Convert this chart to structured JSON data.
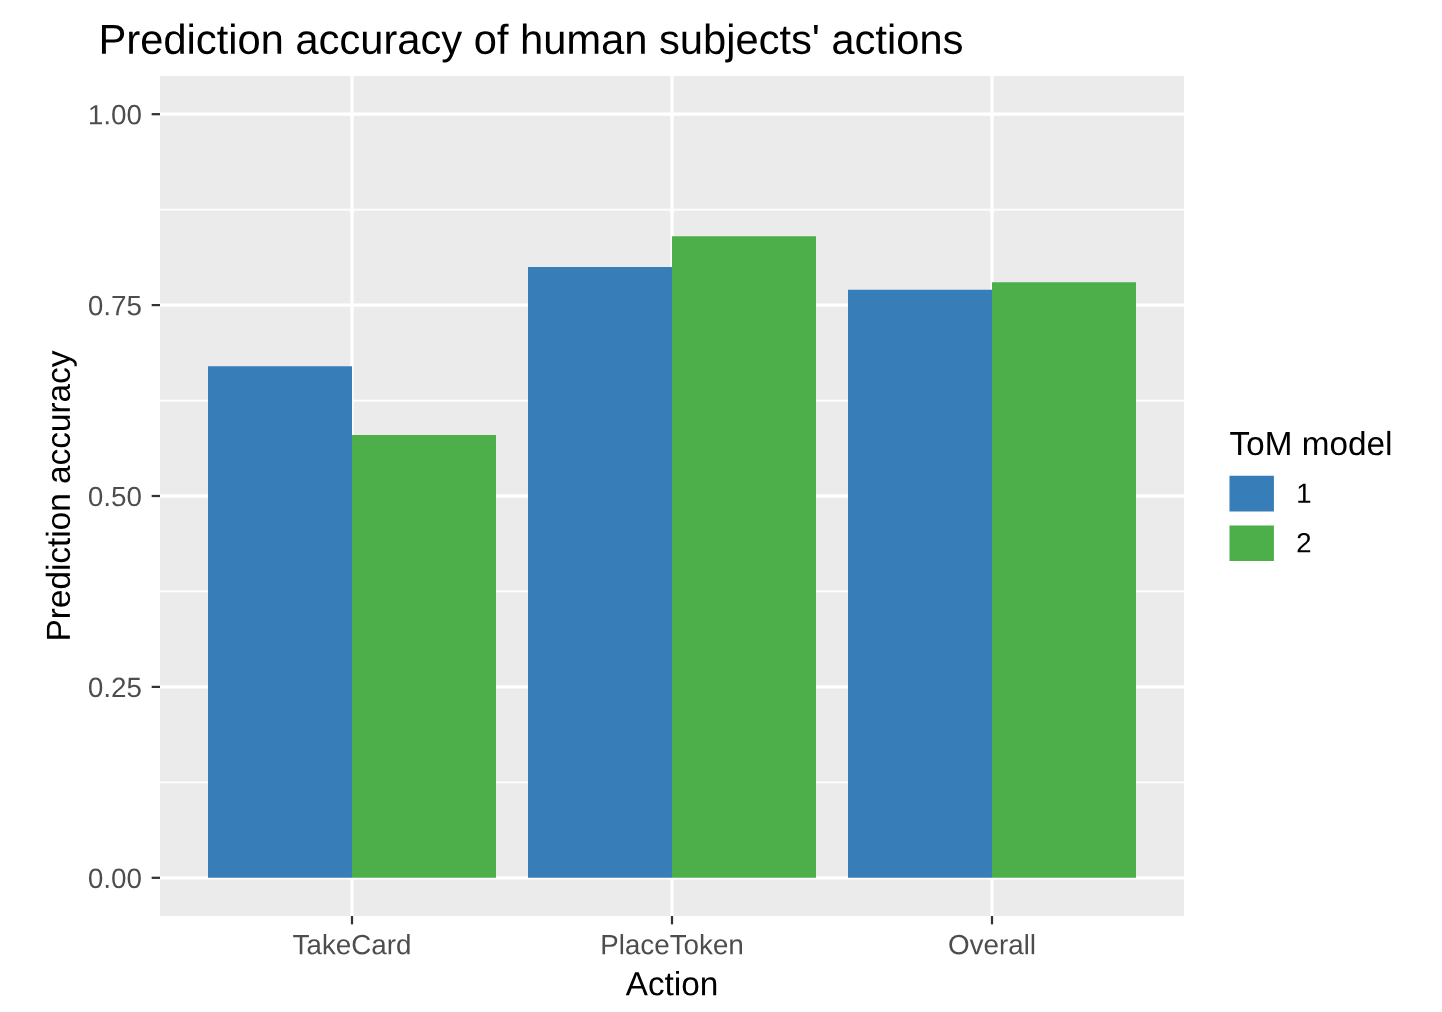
{
  "chart_data": {
    "type": "bar",
    "title": "Prediction accuracy of human subjects' actions",
    "xlabel": "Action",
    "ylabel": "Prediction accuracy",
    "legend_title": "ToM model",
    "categories": [
      "TakeCard",
      "PlaceToken",
      "Overall"
    ],
    "series": [
      {
        "name": "1",
        "color": "#377eb8",
        "values": [
          0.67,
          0.8,
          0.77
        ]
      },
      {
        "name": "2",
        "color": "#4daf4a",
        "values": [
          0.58,
          0.84,
          0.78
        ]
      }
    ],
    "ylim": [
      -0.05,
      1.05
    ],
    "yticks": [
      {
        "value": 0,
        "label": "0.00"
      },
      {
        "value": 0.25,
        "label": "0.25"
      },
      {
        "value": 0.5,
        "label": "0.50"
      },
      {
        "value": 0.75,
        "label": "0.75"
      },
      {
        "value": 1,
        "label": "1.00"
      }
    ],
    "grid": true,
    "legend": "right"
  }
}
